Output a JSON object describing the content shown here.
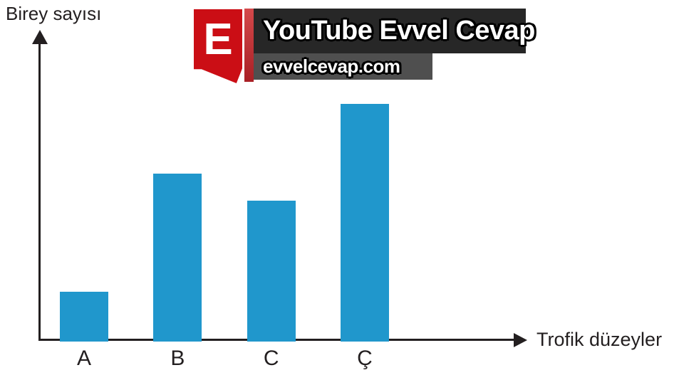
{
  "chart": {
    "ylabel": "Birey sayısı",
    "xlabel": "Trofik düzeyler",
    "axis_color": "#231f20",
    "text_color": "#231f20"
  },
  "chart_data": {
    "type": "bar",
    "categories": [
      "A",
      "B",
      "C",
      "Ç"
    ],
    "values": [
      70,
      236,
      198,
      334
    ],
    "values_note": "no numeric y-axis shown; values are relative bar heights read in pixels (Ç > B > C > A)",
    "title": "",
    "xlabel": "Trofik düzeyler",
    "ylabel": "Birey sayısı",
    "ylim": [
      0,
      350
    ],
    "grid": false,
    "legend": false,
    "bar_color": "#2097cc"
  },
  "watermark": {
    "badge_letter": "E",
    "badge_color": "#cb0e15",
    "stripe_color_top": "#d4494b",
    "stripe_color_bottom": "#a92025",
    "title": "YouTube Evvel Cevap",
    "url": "evvelcevap.com",
    "title_banner_color": "#272727",
    "url_banner_color": "#4f4f4f",
    "text_color": "#ffffff",
    "outline_color": "#000000"
  }
}
